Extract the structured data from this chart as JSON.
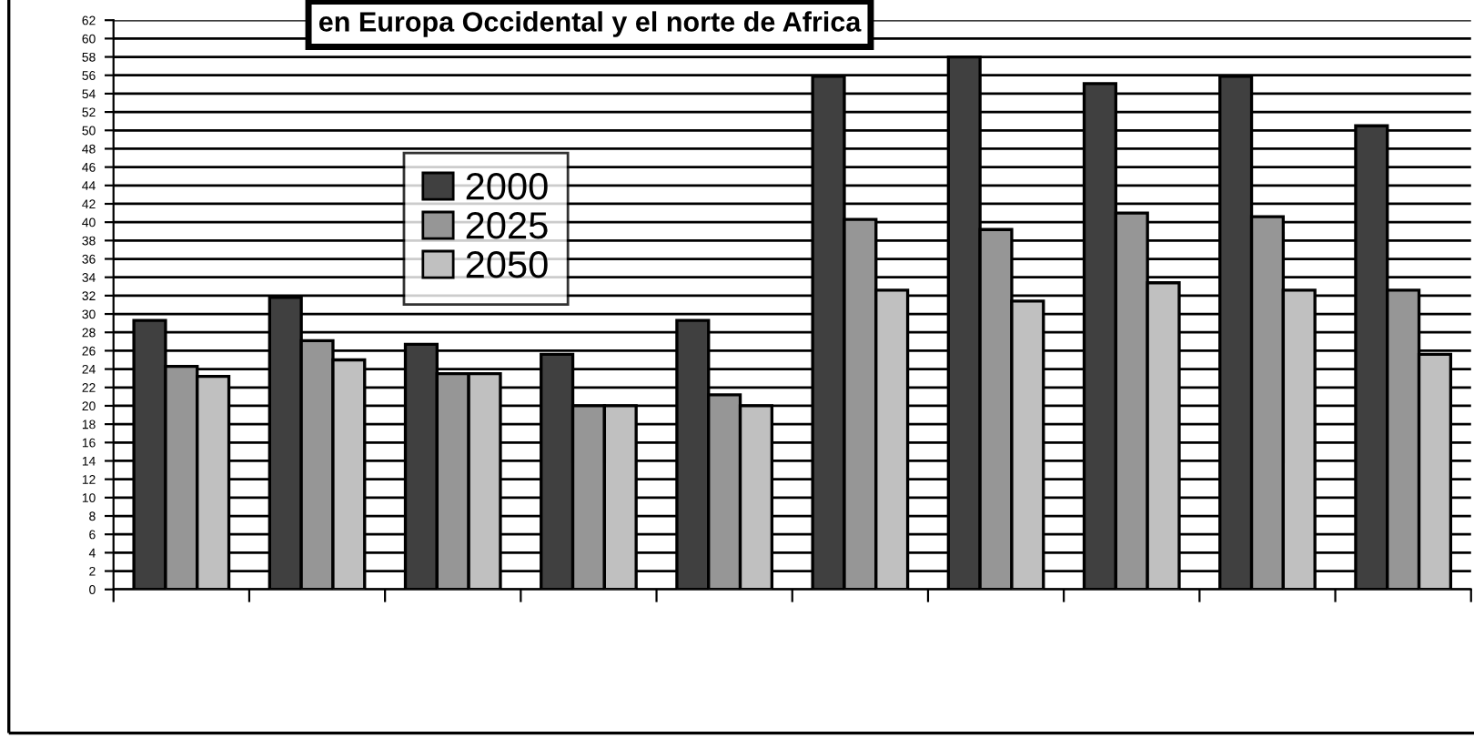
{
  "chart_data": {
    "type": "bar",
    "title": "en Europa Occidental y el norte de Africa",
    "categories": [
      null,
      null,
      null,
      null,
      null,
      null,
      null,
      null,
      null,
      null
    ],
    "series": [
      {
        "name": "2000",
        "color": "#404040",
        "values": [
          29.3,
          31.8,
          26.7,
          25.6,
          29.3,
          55.9,
          58.0,
          55.1,
          55.9,
          50.5
        ]
      },
      {
        "name": "2025",
        "color": "#969696",
        "values": [
          24.3,
          27.1,
          23.5,
          20.0,
          21.2,
          40.3,
          39.2,
          41.0,
          40.6,
          32.6
        ]
      },
      {
        "name": "2050",
        "color": "#c0c0c0",
        "values": [
          23.2,
          25.0,
          23.5,
          20.0,
          20.0,
          32.6,
          31.4,
          33.4,
          32.6,
          25.6
        ]
      }
    ],
    "ylim": [
      0,
      62
    ],
    "yticks": [
      0,
      2,
      4,
      6,
      8,
      10,
      12,
      14,
      16,
      18,
      20,
      22,
      24,
      26,
      28,
      30,
      32,
      34,
      36,
      38,
      40,
      42,
      44,
      46,
      48,
      50,
      52,
      54,
      56,
      58,
      60,
      62
    ],
    "grid": "y",
    "legend": "top left"
  }
}
